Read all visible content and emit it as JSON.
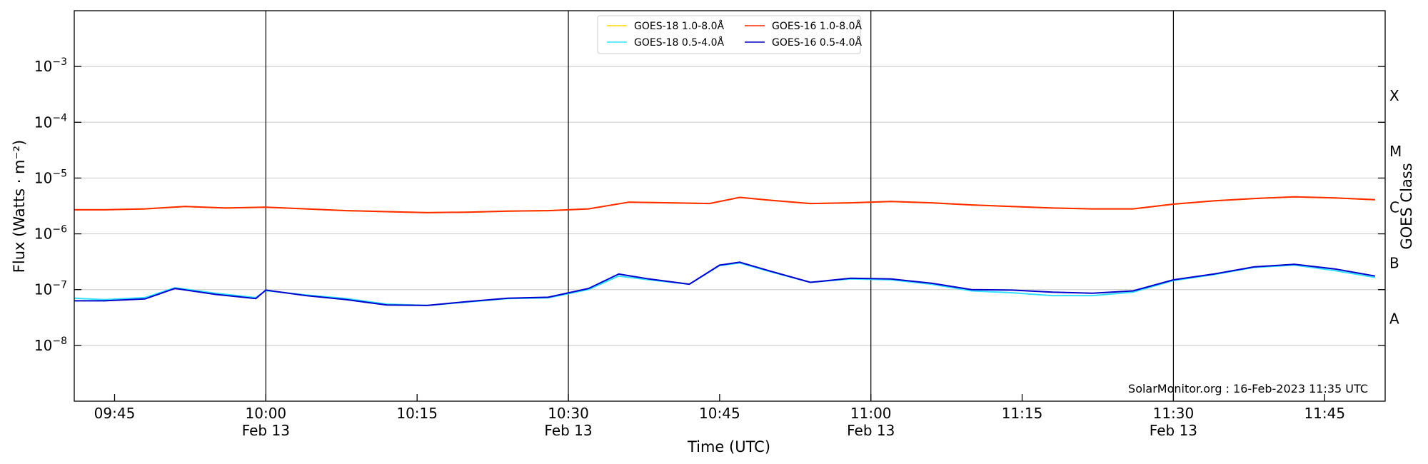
{
  "chart_data": {
    "type": "line",
    "xlabel": "Time (UTC)",
    "ylabel": "Flux (Watts · m⁻²)",
    "ylabel_right": "GOES Class",
    "y_scale": "log",
    "xlim": [
      "2023-02-13 09:41",
      "2023-02-13 11:51"
    ],
    "ylim": [
      1e-09,
      0.01
    ],
    "y_ticks": [
      {
        "value": 1e-08,
        "base": "10",
        "exp": "−8"
      },
      {
        "value": 1e-07,
        "base": "10",
        "exp": "−7"
      },
      {
        "value": 1e-06,
        "base": "10",
        "exp": "−6"
      },
      {
        "value": 1e-05,
        "base": "10",
        "exp": "−5"
      },
      {
        "value": 0.0001,
        "base": "10",
        "exp": "−4"
      },
      {
        "value": 0.001,
        "base": "10",
        "exp": "−3"
      }
    ],
    "x_ticks": [
      {
        "time": "09:45",
        "label": "09:45",
        "date": ""
      },
      {
        "time": "10:00",
        "label": "10:00",
        "date": "Feb 13"
      },
      {
        "time": "10:15",
        "label": "10:15",
        "date": ""
      },
      {
        "time": "10:30",
        "label": "10:30",
        "date": "Feb 13"
      },
      {
        "time": "10:45",
        "label": "10:45",
        "date": ""
      },
      {
        "time": "11:00",
        "label": "11:00",
        "date": "Feb 13"
      },
      {
        "time": "11:15",
        "label": "11:15",
        "date": ""
      },
      {
        "time": "11:30",
        "label": "11:30",
        "date": "Feb 13"
      },
      {
        "time": "11:45",
        "label": "11:45",
        "date": ""
      }
    ],
    "vertical_lines": [
      "10:00",
      "10:30",
      "11:00",
      "11:30"
    ],
    "goes_classes": [
      {
        "label": "A",
        "value": 3e-08
      },
      {
        "label": "B",
        "value": 3e-07
      },
      {
        "label": "C",
        "value": 3e-06
      },
      {
        "label": "M",
        "value": 3e-05
      },
      {
        "label": "X",
        "value": 0.0003
      }
    ],
    "grid": "horizontal",
    "legend_position": "top-center",
    "annotation": "SolarMonitor.org : 16-Feb-2023 11:35 UTC",
    "series": [
      {
        "name": "GOES-18 1.0-8.0Å",
        "color": "#ffd700",
        "x": [
          "09:40",
          "09:44",
          "09:48",
          "09:52",
          "09:56",
          "10:00",
          "10:04",
          "10:08",
          "10:12",
          "10:16",
          "10:20",
          "10:24",
          "10:28",
          "10:32",
          "10:36",
          "10:40",
          "10:44",
          "10:47",
          "10:50",
          "10:54",
          "10:58",
          "11:02",
          "11:06",
          "11:10",
          "11:14",
          "11:18",
          "11:22",
          "11:26",
          "11:30",
          "11:34",
          "11:38",
          "11:42",
          "11:46",
          "11:50"
        ],
        "values": [
          2.7e-06,
          2.7e-06,
          2.8e-06,
          3.1e-06,
          2.9e-06,
          3e-06,
          2.8e-06,
          2.6e-06,
          2.5e-06,
          2.4e-06,
          2.45e-06,
          2.55e-06,
          2.6e-06,
          2.8e-06,
          3.7e-06,
          3.6e-06,
          3.5e-06,
          4.5e-06,
          4e-06,
          3.5e-06,
          3.6e-06,
          3.8e-06,
          3.6e-06,
          3.3e-06,
          3.1e-06,
          2.9e-06,
          2.8e-06,
          2.8e-06,
          3.4e-06,
          3.9e-06,
          4.3e-06,
          4.6e-06,
          4.4e-06,
          4.1e-06
        ]
      },
      {
        "name": "GOES-18 0.5-4.0Å",
        "color": "#33e0ff",
        "x": [
          "09:40",
          "09:44",
          "09:48",
          "09:51",
          "09:55",
          "09:59",
          "10:00",
          "10:04",
          "10:08",
          "10:12",
          "10:16",
          "10:20",
          "10:24",
          "10:28",
          "10:32",
          "10:35",
          "10:38",
          "10:42",
          "10:45",
          "10:47",
          "10:50",
          "10:54",
          "10:58",
          "11:02",
          "11:06",
          "11:10",
          "11:14",
          "11:18",
          "11:22",
          "11:26",
          "11:30",
          "11:34",
          "11:38",
          "11:42",
          "11:46",
          "11:50"
        ],
        "values": [
          7e-08,
          6.6e-08,
          7.2e-08,
          1.08e-07,
          8.6e-08,
          7.2e-08,
          9.6e-08,
          8e-08,
          6.9e-08,
          5.5e-08,
          5.2e-08,
          6e-08,
          6.9e-08,
          7.1e-08,
          1e-07,
          1.75e-07,
          1.5e-07,
          1.25e-07,
          2.7e-07,
          3e-07,
          2.1e-07,
          1.35e-07,
          1.55e-07,
          1.5e-07,
          1.25e-07,
          9.5e-08,
          8.8e-08,
          7.8e-08,
          7.8e-08,
          9e-08,
          1.45e-07,
          1.85e-07,
          2.5e-07,
          2.75e-07,
          2.2e-07,
          1.65e-07
        ]
      },
      {
        "name": "GOES-16 1.0-8.0Å",
        "color": "#ff2a00",
        "x": [
          "09:40",
          "09:44",
          "09:48",
          "09:52",
          "09:56",
          "10:00",
          "10:04",
          "10:08",
          "10:12",
          "10:16",
          "10:20",
          "10:24",
          "10:28",
          "10:32",
          "10:36",
          "10:40",
          "10:44",
          "10:47",
          "10:50",
          "10:54",
          "10:58",
          "11:02",
          "11:06",
          "11:10",
          "11:14",
          "11:18",
          "11:22",
          "11:26",
          "11:30",
          "11:34",
          "11:38",
          "11:42",
          "11:46",
          "11:50"
        ],
        "values": [
          2.7e-06,
          2.7e-06,
          2.8e-06,
          3.1e-06,
          2.9e-06,
          3e-06,
          2.8e-06,
          2.6e-06,
          2.5e-06,
          2.4e-06,
          2.45e-06,
          2.55e-06,
          2.6e-06,
          2.8e-06,
          3.7e-06,
          3.6e-06,
          3.5e-06,
          4.5e-06,
          4e-06,
          3.5e-06,
          3.6e-06,
          3.8e-06,
          3.6e-06,
          3.3e-06,
          3.1e-06,
          2.9e-06,
          2.8e-06,
          2.8e-06,
          3.4e-06,
          3.9e-06,
          4.3e-06,
          4.6e-06,
          4.4e-06,
          4.1e-06
        ]
      },
      {
        "name": "GOES-16 0.5-4.0Å",
        "color": "#0000cc",
        "x": [
          "09:40",
          "09:44",
          "09:48",
          "09:51",
          "09:55",
          "09:59",
          "10:00",
          "10:04",
          "10:08",
          "10:12",
          "10:16",
          "10:20",
          "10:24",
          "10:28",
          "10:32",
          "10:35",
          "10:38",
          "10:42",
          "10:45",
          "10:47",
          "10:50",
          "10:54",
          "10:58",
          "11:02",
          "11:06",
          "11:10",
          "11:14",
          "11:18",
          "11:22",
          "11:26",
          "11:30",
          "11:34",
          "11:38",
          "11:42",
          "11:46",
          "11:50"
        ],
        "values": [
          6.3e-08,
          6.3e-08,
          6.8e-08,
          1.05e-07,
          8.2e-08,
          6.9e-08,
          9.8e-08,
          7.8e-08,
          6.6e-08,
          5.3e-08,
          5.2e-08,
          6.1e-08,
          7e-08,
          7.3e-08,
          1.05e-07,
          1.9e-07,
          1.55e-07,
          1.25e-07,
          2.75e-07,
          3.1e-07,
          2.15e-07,
          1.35e-07,
          1.6e-07,
          1.55e-07,
          1.3e-07,
          1e-07,
          9.8e-08,
          9e-08,
          8.6e-08,
          9.5e-08,
          1.5e-07,
          1.9e-07,
          2.55e-07,
          2.85e-07,
          2.35e-07,
          1.75e-07
        ]
      }
    ]
  }
}
